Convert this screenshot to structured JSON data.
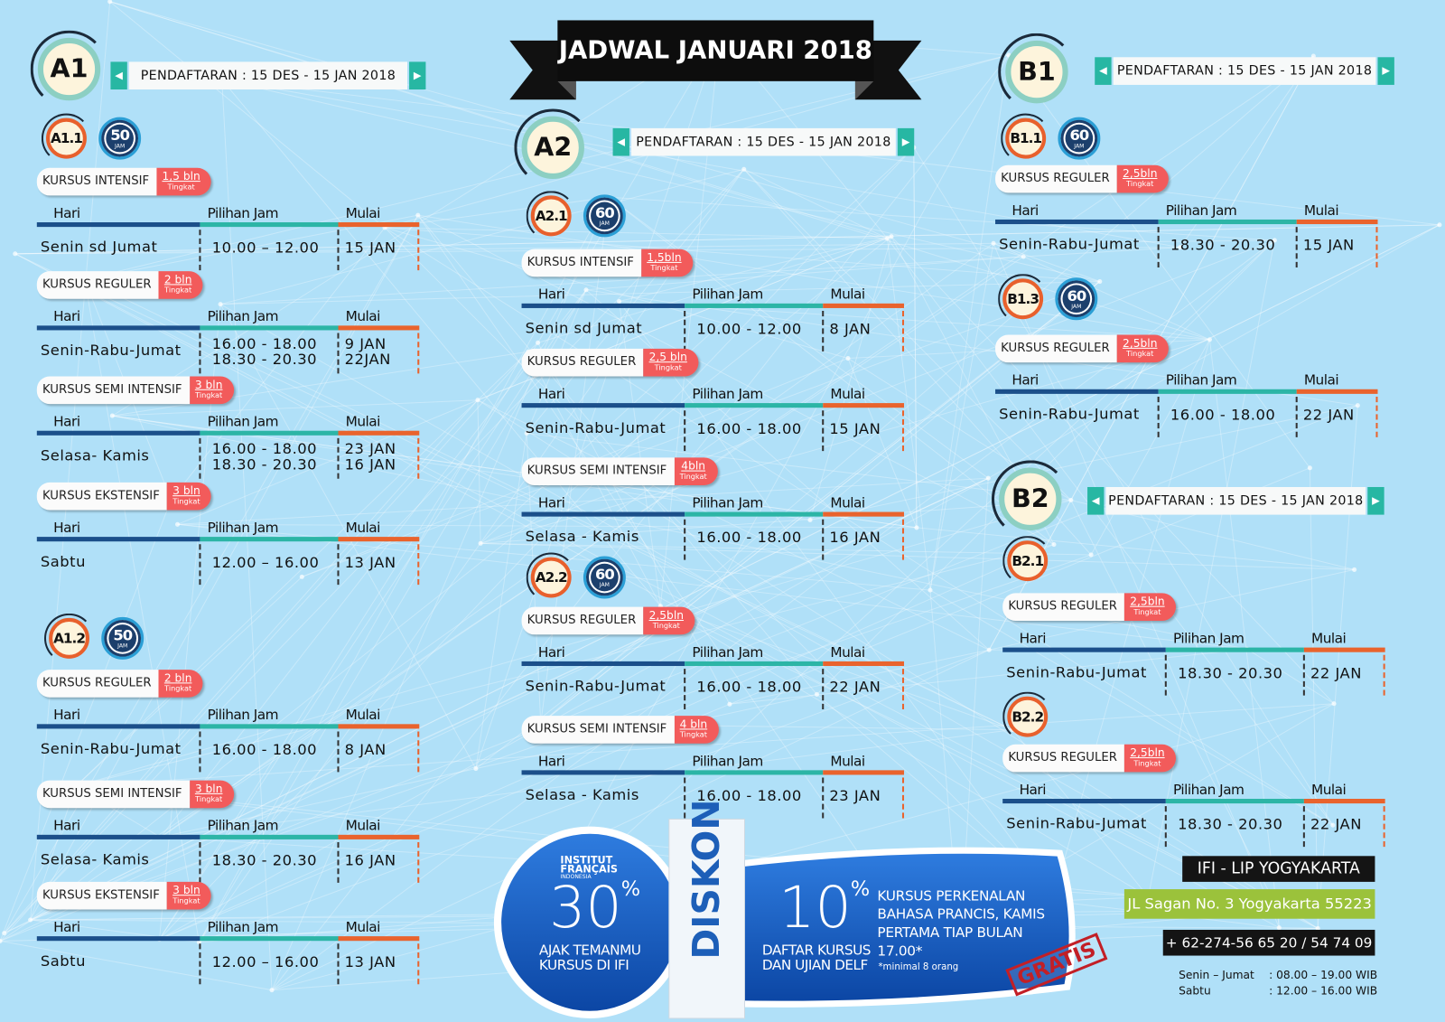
{
  "title": "JADWAL JANUARI 2018",
  "registration": "PENDAFTARAN : 15 DES - 15 JAN 2018",
  "columns": [
    "Hari",
    "Pilihan Jam",
    "Mulai"
  ],
  "tingkat": "Tingkat",
  "hours_unit": "JAM",
  "levels": [
    {
      "name": "A1",
      "sublevels": [
        {
          "name": "A1.1",
          "hours": "50",
          "courses": [
            {
              "name": "KURSUS INTENSIF",
              "duration": "1,5 bln",
              "day": "Senin sd Jumat",
              "times": [
                "10.00 – 12.00"
              ],
              "starts": [
                "15 JAN"
              ]
            },
            {
              "name": "KURSUS REGULER",
              "duration": "2 bln",
              "day": "Senin-Rabu-Jumat",
              "times": [
                "16.00 - 18.00",
                "18.30 - 20.30"
              ],
              "starts": [
                "9 JAN",
                "22JAN"
              ]
            },
            {
              "name": "KURSUS SEMI INTENSIF",
              "duration": "3 bln",
              "day": "Selasa- Kamis",
              "times": [
                "16.00 - 18.00",
                "18.30 - 20.30"
              ],
              "starts": [
                "23 JAN",
                "16 JAN"
              ]
            },
            {
              "name": "KURSUS EKSTENSIF",
              "duration": "3 bln",
              "day": "Sabtu",
              "times": [
                "12.00 – 16.00"
              ],
              "starts": [
                "13 JAN"
              ]
            }
          ]
        },
        {
          "name": "A1.2",
          "hours": "50",
          "courses": [
            {
              "name": "KURSUS REGULER",
              "duration": "2 bln",
              "day": "Senin-Rabu-Jumat",
              "times": [
                "16.00 - 18.00"
              ],
              "starts": [
                "8 JAN"
              ]
            },
            {
              "name": "KURSUS SEMI INTENSIF",
              "duration": "3 bln",
              "day": "Selasa- Kamis",
              "times": [
                "18.30 - 20.30"
              ],
              "starts": [
                "16 JAN"
              ]
            },
            {
              "name": "KURSUS EKSTENSIF",
              "duration": "3 bln",
              "day": "Sabtu",
              "times": [
                "12.00 – 16.00"
              ],
              "starts": [
                "13 JAN"
              ]
            }
          ]
        }
      ]
    },
    {
      "name": "A2",
      "sublevels": [
        {
          "name": "A2.1",
          "hours": "60",
          "courses": [
            {
              "name": "KURSUS INTENSIF",
              "duration": "1,5bln",
              "day": "Senin sd Jumat",
              "times": [
                "10.00 - 12.00"
              ],
              "starts": [
                "8 JAN"
              ]
            },
            {
              "name": "KURSUS REGULER",
              "duration": "2,5 bln",
              "day": "Senin-Rabu-Jumat",
              "times": [
                "16.00 - 18.00"
              ],
              "starts": [
                "15 JAN"
              ]
            },
            {
              "name": "KURSUS SEMI INTENSIF",
              "duration": "4bln",
              "day": "Selasa - Kamis",
              "times": [
                "16.00 - 18.00"
              ],
              "starts": [
                "16 JAN"
              ]
            }
          ]
        },
        {
          "name": "A2.2",
          "hours": "60",
          "courses": [
            {
              "name": "KURSUS REGULER",
              "duration": "2,5bln",
              "day": "Senin-Rabu-Jumat",
              "times": [
                "16.00 - 18.00"
              ],
              "starts": [
                "22 JAN"
              ]
            },
            {
              "name": "KURSUS SEMI INTENSIF",
              "duration": "4 bln",
              "day": "Selasa - Kamis",
              "times": [
                "16.00 - 18.00"
              ],
              "starts": [
                "23 JAN"
              ]
            }
          ]
        }
      ]
    },
    {
      "name": "B1",
      "sublevels": [
        {
          "name": "B1.1",
          "hours": "60",
          "courses": [
            {
              "name": "KURSUS REGULER",
              "duration": "2,5bln",
              "day": "Senin-Rabu-Jumat",
              "times": [
                "18.30 - 20.30"
              ],
              "starts": [
                "15 JAN"
              ]
            }
          ]
        },
        {
          "name": "B1.3",
          "hours": "60",
          "courses": [
            {
              "name": "KURSUS REGULER",
              "duration": "2,5bln",
              "day": "Senin-Rabu-Jumat",
              "times": [
                "16.00 - 18.00"
              ],
              "starts": [
                "22 JAN"
              ]
            }
          ]
        }
      ]
    },
    {
      "name": "B2",
      "sublevels": [
        {
          "name": "B2.1",
          "courses": [
            {
              "name": "KURSUS REGULER",
              "duration": "2,5bln",
              "day": "Senin-Rabu-Jumat",
              "times": [
                "18.30 - 20.30"
              ],
              "starts": [
                "22 JAN"
              ]
            }
          ]
        },
        {
          "name": "B2.2",
          "courses": [
            {
              "name": "KURSUS REGULER",
              "duration": "2,5bln",
              "day": "Senin-Rabu-Jumat",
              "times": [
                "18.30 - 20.30"
              ],
              "starts": [
                "22 JAN"
              ]
            }
          ]
        }
      ]
    }
  ],
  "promo": {
    "logo": [
      "INSTITUT",
      "FRANÇAIS",
      "INDONESIA"
    ],
    "label": "DISKON",
    "offers": [
      {
        "value": "30",
        "sign": "%",
        "text": [
          "AJAK TEMANMU",
          "KURSUS DI IFI"
        ]
      },
      {
        "value": "10",
        "sign": "%",
        "text": [
          "DAFTAR KURSUS",
          "DAN UJIAN DELF"
        ]
      }
    ],
    "free": {
      "text": [
        "KURSUS PERKENALAN",
        "BAHASA PRANCIS, KAMIS",
        "PERTAMA TIAP BULAN",
        "17.00*"
      ],
      "note": "*minimal 8 orang",
      "stamp": "GRATIS"
    }
  },
  "contact": {
    "name": "IFI - LIP YOGYAKARTA",
    "address": "JL Sagan No. 3 Yogyakarta 55223",
    "phone": "+ 62-274-56 65 20 / 54 74 09",
    "hours": [
      [
        "Senin – Jumat",
        ": 08.00 – 19.00 WIB"
      ],
      [
        "Sabtu",
        ": 12.00 – 16.00 WIB"
      ]
    ]
  }
}
